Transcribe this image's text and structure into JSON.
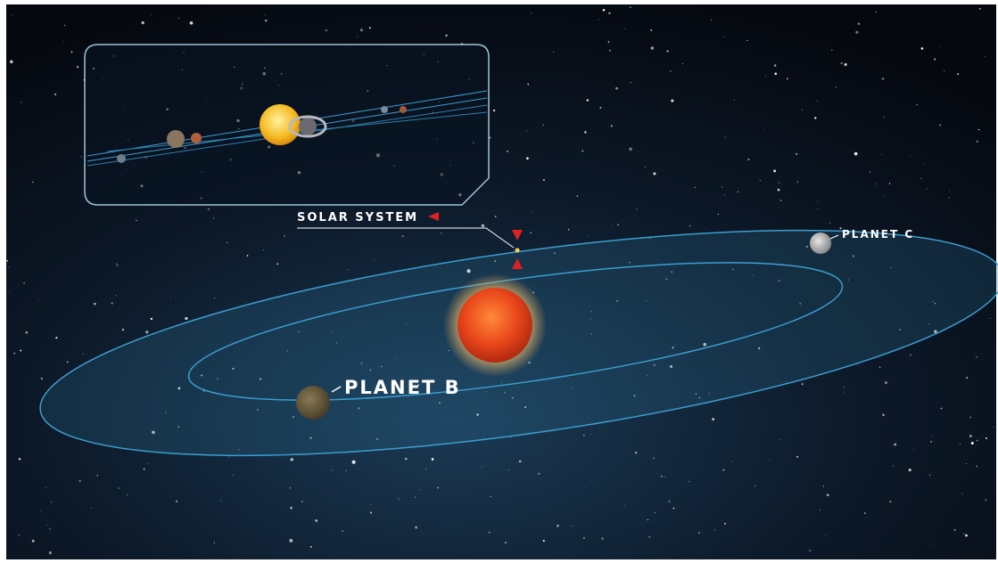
{
  "labels": {
    "solar_system": "SOLAR SYSTEM",
    "planet_b": "PLANET B",
    "planet_c": "PLANET C"
  }
}
